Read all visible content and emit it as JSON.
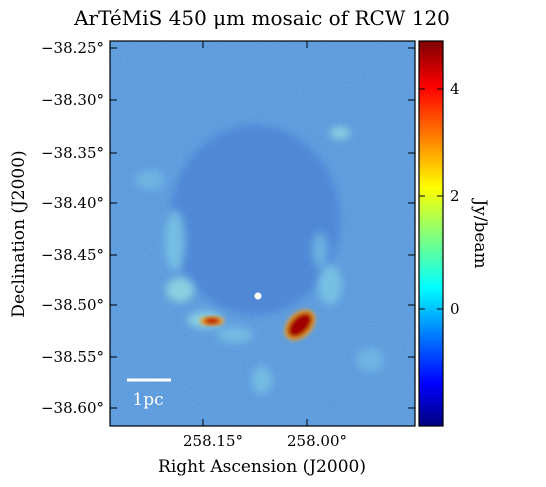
{
  "figure": {
    "title": "ArTéMiS 450 μm mosaic of RCW 120",
    "xlabel": "Right Ascension (J2000)",
    "ylabel": "Declination (J2000)",
    "scalebar_label": "1pc",
    "colors": {
      "map_background": "#5b95d8",
      "ring_emission": "#7cc9e6",
      "hot_core": "#a00000",
      "star_marker": "#ffffff"
    },
    "x_ticks": [
      {
        "value": 258.15,
        "label": "258.15°"
      },
      {
        "value": 258.0,
        "label": "258.00°"
      }
    ],
    "y_ticks": [
      {
        "value": -38.25,
        "label": "−38.25°"
      },
      {
        "value": -38.3,
        "label": "−38.30°"
      },
      {
        "value": -38.35,
        "label": "−38.35°"
      },
      {
        "value": -38.4,
        "label": "−38.40°"
      },
      {
        "value": -38.45,
        "label": "−38.45°"
      },
      {
        "value": -38.5,
        "label": "−38.50°"
      },
      {
        "value": -38.55,
        "label": "−38.55°"
      },
      {
        "value": -38.6,
        "label": "−38.60°"
      }
    ],
    "colorbar": {
      "label": "Jy/beam",
      "range": [
        -1.75,
        4.85
      ],
      "ticks": [
        {
          "value": 0,
          "label": "0"
        },
        {
          "value": 2,
          "label": "2"
        },
        {
          "value": 4,
          "label": "4"
        }
      ],
      "colormap": [
        "#00007f",
        "#0000ff",
        "#007fff",
        "#00ffff",
        "#7fff7f",
        "#ffff00",
        "#ff7f00",
        "#ff0000",
        "#7f0000"
      ]
    }
  }
}
